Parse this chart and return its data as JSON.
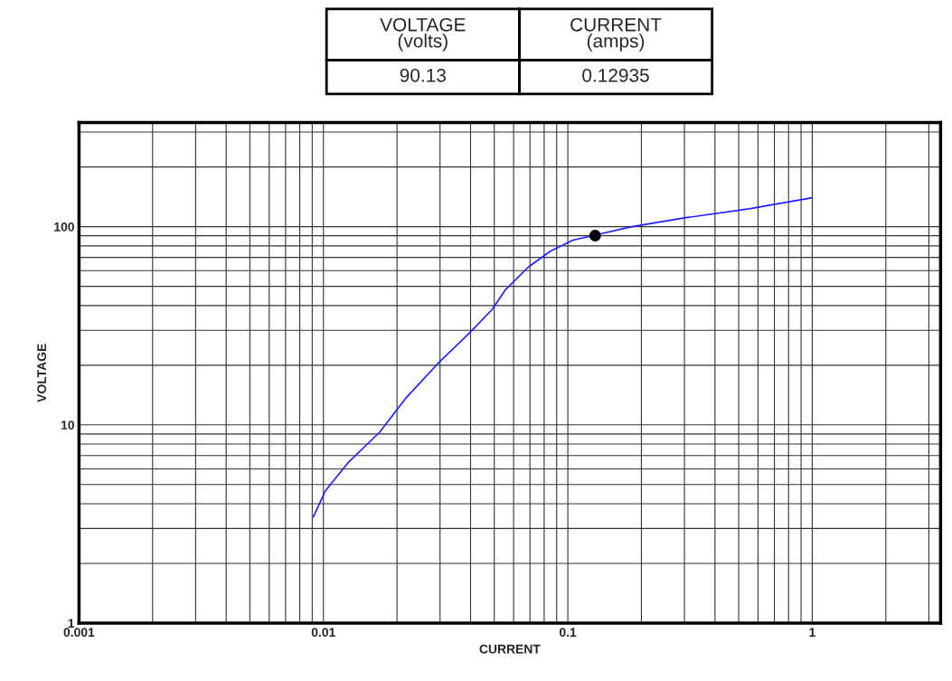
{
  "chart_data": {
    "type": "line",
    "xlabel": "CURRENT",
    "ylabel": "VOLTAGE",
    "log": "xy",
    "grid": true,
    "xlim": [
      0.001,
      3.35
    ],
    "xticks": [
      0.001,
      0.01,
      0.1,
      1
    ],
    "ylim": [
      1,
      335
    ],
    "yticks": [
      1,
      10,
      100
    ],
    "annotations": [
      "VOLTAGE (volts)",
      "CURRENT (amps)",
      "90.13",
      "0.12935"
    ],
    "series": [
      {
        "color": "#2020ff",
        "marker": "none",
        "line_style": "solid",
        "x": [
          0.0091,
          0.0102,
          0.0126,
          0.017,
          0.0218,
          0.0294,
          0.0396,
          0.049,
          0.0556,
          0.0688,
          0.0851,
          0.105,
          0.183,
          0.304,
          0.552,
          1.0
        ],
        "values": [
          3.44,
          4.66,
          6.44,
          9.2,
          13.7,
          20.4,
          29.1,
          38.2,
          48.1,
          62.4,
          75.4,
          85.5,
          100,
          111,
          123,
          140
        ]
      },
      {
        "type": "scatter",
        "color": "#000000",
        "marker": "circle",
        "x": [
          0.12935
        ],
        "values": [
          90.13
        ]
      }
    ]
  }
}
